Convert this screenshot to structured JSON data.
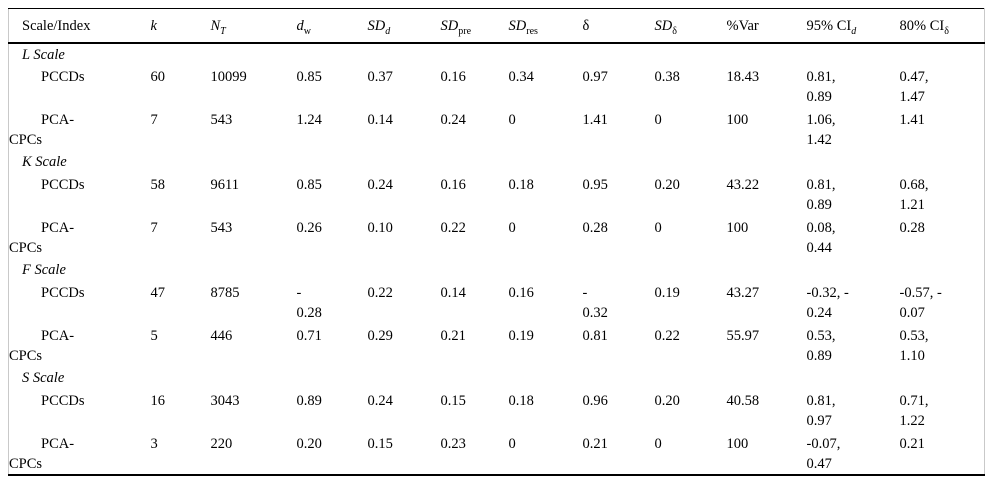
{
  "table": {
    "columns": [
      {
        "id": "scale-index",
        "label": "Scale/Index",
        "sub": "",
        "label_italic": false,
        "sub_italic": false
      },
      {
        "id": "k",
        "label": "k",
        "sub": "",
        "label_italic": true,
        "sub_italic": false
      },
      {
        "id": "n-t",
        "label": "N",
        "sub": "T",
        "label_italic": true,
        "sub_italic": true
      },
      {
        "id": "d-w",
        "label": "d",
        "sub": "w",
        "label_italic": true,
        "sub_italic": false
      },
      {
        "id": "sd-d",
        "label": "SD",
        "sub": "d",
        "label_italic": true,
        "sub_italic": true
      },
      {
        "id": "sd-pre",
        "label": "SD",
        "sub": "pre",
        "label_italic": true,
        "sub_italic": false
      },
      {
        "id": "sd-res",
        "label": "SD",
        "sub": "res",
        "label_italic": true,
        "sub_italic": false
      },
      {
        "id": "delta",
        "label": "δ",
        "sub": "",
        "label_italic": false,
        "sub_italic": false
      },
      {
        "id": "sd-delta",
        "label": "SD",
        "sub": "δ",
        "label_italic": true,
        "sub_italic": false
      },
      {
        "id": "pct-var",
        "label": "%Var",
        "sub": "",
        "label_italic": false,
        "sub_italic": false
      },
      {
        "id": "ci-95-d",
        "label": "95% CI",
        "sub": "d",
        "label_italic": false,
        "sub_italic": true
      },
      {
        "id": "ci-80-delta",
        "label": "80% CI",
        "sub": "δ",
        "label_italic": false,
        "sub_italic": false
      }
    ],
    "sections": [
      {
        "name": "L Scale",
        "rows": [
          {
            "index": "PCCDs",
            "values": [
              "60",
              "10099",
              "0.85",
              "0.37",
              "0.16",
              "0.34",
              "0.97",
              "0.38",
              "18.43",
              "0.81,\n0.89",
              "0.47,\n1.47"
            ]
          },
          {
            "index": "PCA-\nCPCs",
            "values": [
              "7",
              "543",
              "1.24",
              "0.14",
              "0.24",
              "0",
              "1.41",
              "0",
              "100",
              "1.06,\n1.42",
              "1.41"
            ]
          }
        ]
      },
      {
        "name": "K Scale",
        "rows": [
          {
            "index": "PCCDs",
            "values": [
              "58",
              "9611",
              "0.85",
              "0.24",
              "0.16",
              "0.18",
              "0.95",
              "0.20",
              "43.22",
              "0.81,\n0.89",
              "0.68,\n1.21"
            ]
          },
          {
            "index": "PCA-\nCPCs",
            "values": [
              "7",
              "543",
              "0.26",
              "0.10",
              "0.22",
              "0",
              "0.28",
              "0",
              "100",
              "0.08,\n0.44",
              "0.28"
            ]
          }
        ]
      },
      {
        "name": "F Scale",
        "rows": [
          {
            "index": "PCCDs",
            "values": [
              "47",
              "8785",
              "-\n0.28",
              "0.22",
              "0.14",
              "0.16",
              "-\n0.32",
              "0.19",
              "43.27",
              "-0.32, -\n0.24",
              "-0.57, -\n0.07"
            ]
          },
          {
            "index": "PCA-\nCPCs",
            "values": [
              "5",
              "446",
              "0.71",
              "0.29",
              "0.21",
              "0.19",
              "0.81",
              "0.22",
              "55.97",
              "0.53,\n0.89",
              "0.53,\n1.10"
            ]
          }
        ]
      },
      {
        "name": "S Scale",
        "rows": [
          {
            "index": "PCCDs",
            "values": [
              "16",
              "3043",
              "0.89",
              "0.24",
              "0.15",
              "0.18",
              "0.96",
              "0.20",
              "40.58",
              "0.81,\n0.97",
              "0.71,\n1.22"
            ]
          },
          {
            "index": "PCA-\nCPCs",
            "values": [
              "3",
              "220",
              "0.20",
              "0.15",
              "0.23",
              "0",
              "0.21",
              "0",
              "100",
              "-0.07,\n0.47",
              "0.21"
            ]
          }
        ]
      }
    ],
    "colors": {
      "text": "#000000",
      "rule": "#000000",
      "side_border": "#c9c9c9",
      "background": "#ffffff"
    }
  }
}
